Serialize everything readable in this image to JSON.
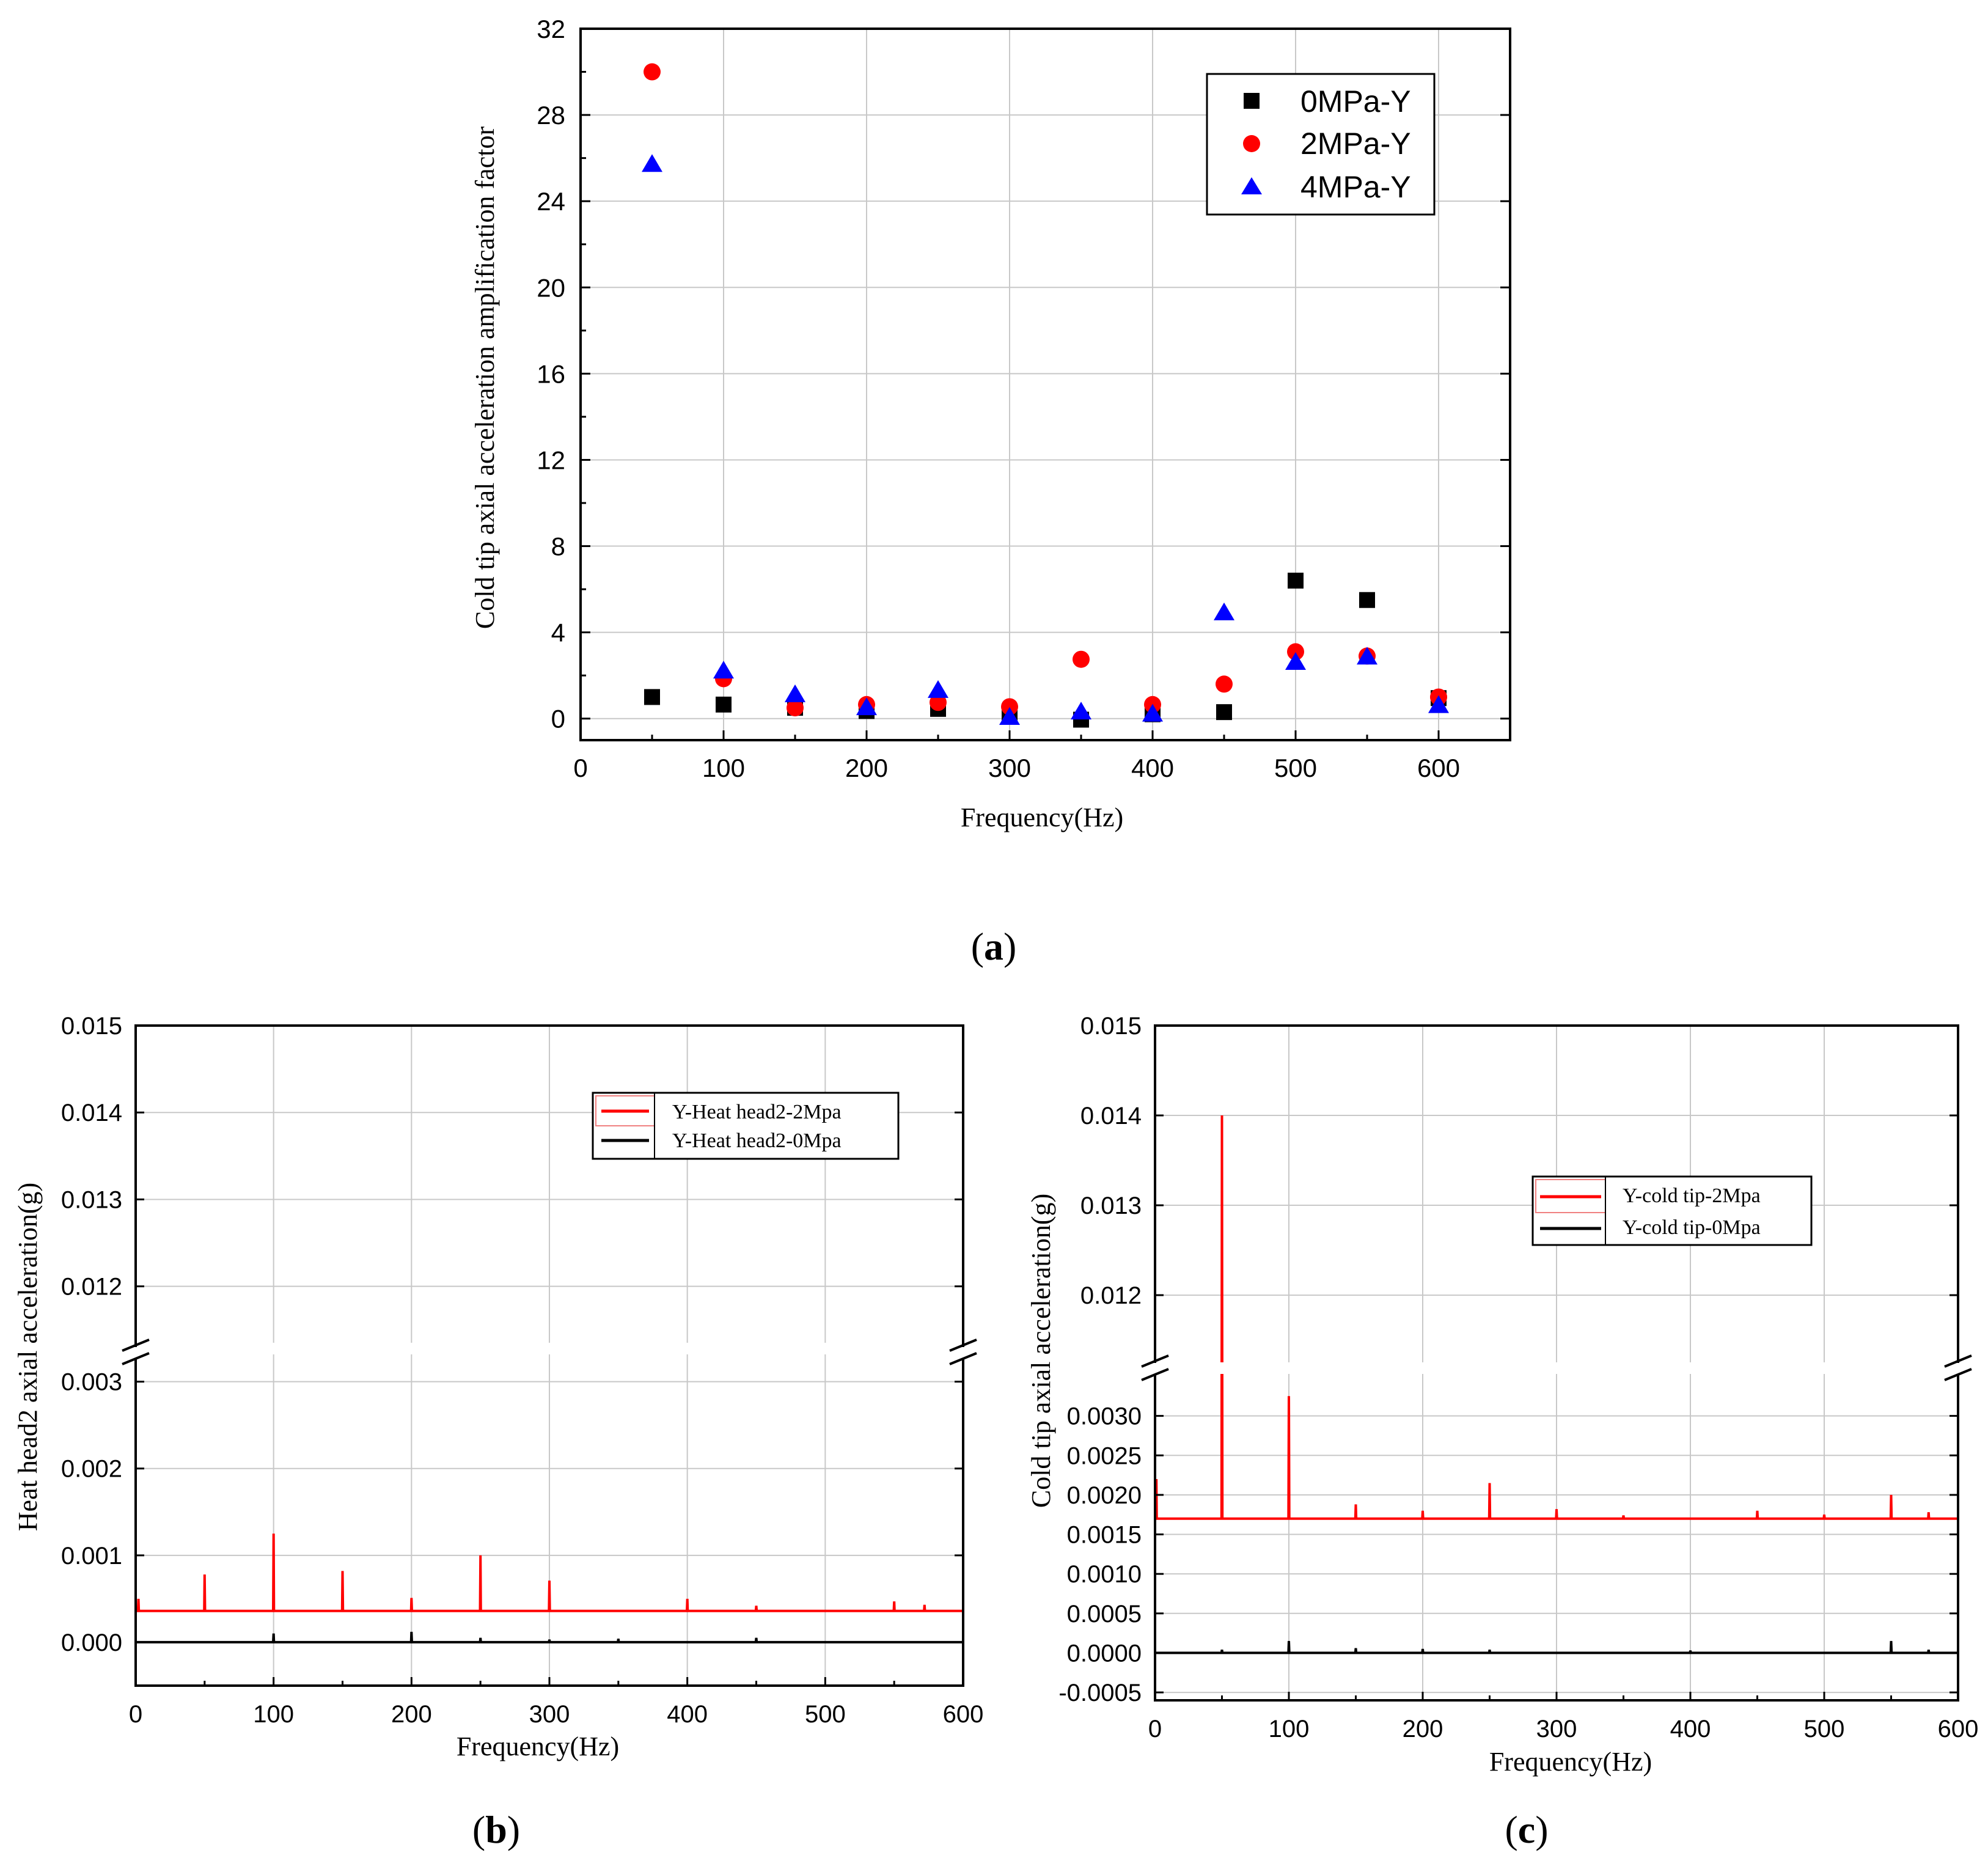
{
  "figure": {
    "panel_labels": {
      "a": {
        "open": "(",
        "letter": "a",
        "close": ")"
      },
      "b": {
        "open": "(",
        "letter": "b",
        "close": ")"
      },
      "c": {
        "open": "(",
        "letter": "c",
        "close": ")"
      }
    }
  },
  "colors": {
    "black": "#000000",
    "red": "#ff0000",
    "blue": "#0000ff",
    "grid": "#c8c8c8"
  },
  "chart_data": [
    {
      "id": "a",
      "type": "scatter",
      "title": "",
      "xlabel": "Frequency(Hz)",
      "ylabel": "Cold tip axial acceleration amplification factor",
      "xlim": [
        0,
        650
      ],
      "ylim": [
        -1,
        32
      ],
      "xticks": [
        0,
        100,
        200,
        300,
        400,
        500,
        600
      ],
      "yticks": [
        0,
        4,
        8,
        12,
        16,
        20,
        24,
        28,
        32
      ],
      "grid": true,
      "legend_position": "top-right",
      "series": [
        {
          "name": "0MPa-Y",
          "marker": "square",
          "color": "#000000",
          "x": [
            50,
            100,
            150,
            200,
            250,
            300,
            350,
            400,
            450,
            500,
            550,
            600
          ],
          "y": [
            1.0,
            0.65,
            0.5,
            0.35,
            0.45,
            0.1,
            -0.05,
            0.2,
            0.3,
            6.4,
            5.5,
            0.95
          ]
        },
        {
          "name": "2MPa-Y",
          "marker": "circle",
          "color": "#ff0000",
          "x": [
            50,
            100,
            150,
            200,
            250,
            300,
            350,
            400,
            450,
            500,
            550,
            600
          ],
          "y": [
            30.0,
            1.85,
            0.5,
            0.65,
            0.75,
            0.55,
            2.75,
            0.65,
            1.6,
            3.1,
            2.9,
            1.0
          ]
        },
        {
          "name": "4MPa-Y",
          "marker": "triangle",
          "color": "#0000ff",
          "x": [
            50,
            100,
            150,
            200,
            250,
            300,
            350,
            400,
            450,
            500,
            550,
            600
          ],
          "y": [
            25.7,
            2.2,
            1.1,
            0.5,
            1.3,
            0.05,
            0.3,
            0.2,
            4.9,
            2.6,
            2.85,
            0.6
          ]
        }
      ]
    },
    {
      "id": "b",
      "type": "line",
      "title": "",
      "xlabel": "Frequency(Hz)",
      "ylabel": "Heat head2 axial acceleration(g)",
      "xlim": [
        0,
        600
      ],
      "xticks": [
        0,
        100,
        200,
        300,
        400,
        500,
        600
      ],
      "y_break": true,
      "ylim_lower": [
        -0.0005,
        0.0033
      ],
      "ylim_upper": [
        0.0114,
        0.015
      ],
      "yticks_lower": [
        "0.000",
        "0.001",
        "0.002",
        "0.003"
      ],
      "yticks_upper": [
        "0.012",
        "0.013",
        "0.014",
        "0.015"
      ],
      "grid": true,
      "legend_position": "top-right",
      "series": [
        {
          "name": "Y-Heat head2-2Mpa",
          "color": "#ff0000",
          "baseline": 0.00036,
          "peaks": [
            [
              2,
              0.0005
            ],
            [
              50,
              0.00078
            ],
            [
              100,
              0.00125
            ],
            [
              150,
              0.00082
            ],
            [
              200,
              0.00051
            ],
            [
              250,
              0.001
            ],
            [
              300,
              0.00071
            ],
            [
              400,
              0.0005
            ],
            [
              450,
              0.00042
            ],
            [
              550,
              0.00047
            ],
            [
              572,
              0.00043
            ]
          ]
        },
        {
          "name": "Y-Heat head2-0Mpa",
          "color": "#000000",
          "baseline": 0.0,
          "peaks": [
            [
              100,
              0.0001
            ],
            [
              200,
              0.00012
            ],
            [
              250,
              5e-05
            ],
            [
              300,
              3e-05
            ],
            [
              350,
              4e-05
            ],
            [
              450,
              5e-05
            ]
          ]
        }
      ]
    },
    {
      "id": "c",
      "type": "line",
      "title": "",
      "xlabel": "Frequency(Hz)",
      "ylabel": "Cold tip axial acceleration(g)",
      "xlim": [
        0,
        600
      ],
      "xticks": [
        0,
        100,
        200,
        300,
        400,
        500,
        600
      ],
      "y_break": true,
      "ylim_lower": [
        -0.0006,
        0.0035
      ],
      "ylim_upper": [
        0.0113,
        0.015
      ],
      "yticks_lower": [
        "-0.0005",
        "0.0000",
        "0.0005",
        "0.0010",
        "0.0015",
        "0.0020",
        "0.0025",
        "0.0030"
      ],
      "yticks_upper": [
        "0.012",
        "0.013",
        "0.014",
        "0.015"
      ],
      "grid": true,
      "legend_position": "upper-right",
      "series": [
        {
          "name": "Y-cold tip-2Mpa",
          "color": "#ff0000",
          "baseline": 0.0017,
          "peaks": [
            [
              1,
              0.0022
            ],
            [
              50,
              0.014
            ],
            [
              100,
              0.00325
            ],
            [
              150,
              0.00188
            ],
            [
              200,
              0.0018
            ],
            [
              250,
              0.00215
            ],
            [
              300,
              0.00182
            ],
            [
              350,
              0.00174
            ],
            [
              450,
              0.0018
            ],
            [
              500,
              0.00175
            ],
            [
              550,
              0.002
            ],
            [
              578,
              0.00178
            ]
          ]
        },
        {
          "name": "Y-cold tip-0Mpa",
          "color": "#000000",
          "baseline": 0.0,
          "peaks": [
            [
              50,
              4e-05
            ],
            [
              100,
              0.00015
            ],
            [
              150,
              6e-05
            ],
            [
              200,
              5e-05
            ],
            [
              250,
              4e-05
            ],
            [
              400,
              3e-05
            ],
            [
              550,
              0.00015
            ],
            [
              578,
              4e-05
            ]
          ]
        }
      ]
    }
  ]
}
